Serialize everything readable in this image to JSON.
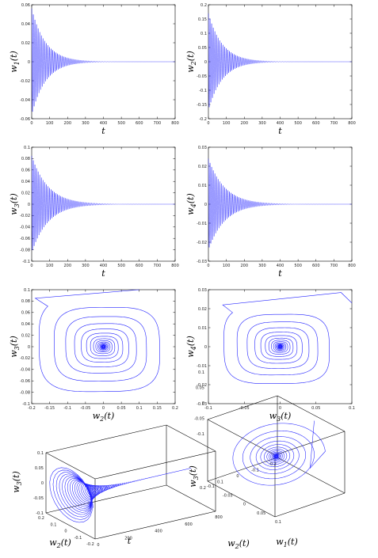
{
  "colors": {
    "line": "#2020ff",
    "axis": "#000000",
    "dense": "#0a0a90"
  },
  "chart_data": [
    {
      "id": "w1t",
      "type": "line",
      "title": "",
      "xlabel": "t",
      "ylabel": "w1(t)",
      "ylabel_sub": "1",
      "xlim": [
        0,
        800
      ],
      "ylim": [
        -0.06,
        0.06
      ],
      "xticks": [
        0,
        100,
        200,
        300,
        400,
        500,
        600,
        700,
        800
      ],
      "yticks": [
        -0.06,
        -0.04,
        -0.02,
        0,
        0.02,
        0.04,
        0.06
      ],
      "ytick_labels": [
        "-0.06",
        "-0.04",
        "-0.02",
        "0",
        "0.02",
        "0.04",
        "0.06"
      ],
      "series": [
        {
          "x_start": 0,
          "x_end": 800,
          "amplitude": 0.056,
          "decay_rate": 0.013,
          "oscillation_period": 9
        }
      ]
    },
    {
      "id": "w2t",
      "type": "line",
      "title": "",
      "xlabel": "t",
      "ylabel": "w2(t)",
      "ylabel_sub": "2",
      "xlim": [
        0,
        800
      ],
      "ylim": [
        -0.2,
        0.2
      ],
      "xticks": [
        0,
        100,
        200,
        300,
        400,
        500,
        600,
        700,
        800
      ],
      "yticks": [
        -0.2,
        -0.15,
        -0.1,
        -0.05,
        0,
        0.05,
        0.1,
        0.15,
        0.2
      ],
      "ytick_labels": [
        "-0.2",
        "-0.15",
        "-0.1",
        "-0.05",
        "0",
        "0.05",
        "0.1",
        "0.15",
        "0.2"
      ],
      "series": [
        {
          "x_start": 0,
          "x_end": 800,
          "amplitude": 0.17,
          "decay_rate": 0.013,
          "oscillation_period": 9
        }
      ]
    },
    {
      "id": "w3t",
      "type": "line",
      "title": "",
      "xlabel": "t",
      "ylabel": "w3(t)",
      "ylabel_sub": "3",
      "xlim": [
        0,
        800
      ],
      "ylim": [
        -0.1,
        0.1
      ],
      "xticks": [
        0,
        100,
        200,
        300,
        400,
        500,
        600,
        700,
        800
      ],
      "yticks": [
        -0.1,
        -0.08,
        -0.06,
        -0.04,
        -0.02,
        0,
        0.02,
        0.04,
        0.06,
        0.08,
        0.1
      ],
      "ytick_labels": [
        "-0.1",
        "-0.08",
        "-0.06",
        "-0.04",
        "-0.02",
        "0",
        "0.02",
        "0.04",
        "0.06",
        "0.08",
        "0.1"
      ],
      "series": [
        {
          "x_start": 0,
          "x_end": 800,
          "amplitude": 0.085,
          "decay_rate": 0.011,
          "oscillation_period": 9
        }
      ]
    },
    {
      "id": "w4t",
      "type": "line",
      "title": "",
      "xlabel": "t",
      "ylabel": "w4(t)",
      "ylabel_sub": "4",
      "xlim": [
        0,
        800
      ],
      "ylim": [
        -0.03,
        0.03
      ],
      "xticks": [
        0,
        100,
        200,
        300,
        400,
        500,
        600,
        700,
        800
      ],
      "yticks": [
        -0.03,
        -0.02,
        -0.01,
        0,
        0.01,
        0.02,
        0.03
      ],
      "ytick_labels": [
        "-0.03",
        "-0.02",
        "-0.01",
        "0",
        "0.01",
        "0.02",
        "0.03"
      ],
      "series": [
        {
          "x_start": 0,
          "x_end": 800,
          "amplitude": 0.024,
          "decay_rate": 0.011,
          "oscillation_period": 9
        }
      ]
    },
    {
      "id": "w2w3",
      "type": "line",
      "title": "",
      "xlabel": "w2(t)",
      "xlabel_sub": "2",
      "ylabel": "w3(t)",
      "ylabel_sub": "3",
      "xlim": [
        -0.2,
        0.2
      ],
      "ylim": [
        -0.1,
        0.1
      ],
      "xticks": [
        -0.2,
        -0.15,
        -0.1,
        -0.05,
        0,
        0.05,
        0.1,
        0.15,
        0.2
      ],
      "xtick_labels": [
        "-0.2",
        "-0.15",
        "-0.1",
        "-0.05",
        "0",
        "0.05",
        "0.1",
        "0.15",
        "0.2"
      ],
      "yticks": [
        -0.1,
        -0.08,
        -0.06,
        -0.04,
        -0.02,
        0,
        0.02,
        0.04,
        0.06,
        0.08,
        0.1
      ],
      "ytick_labels": [
        "-0.1",
        "-0.08",
        "-0.06",
        "-0.04",
        "-0.02",
        "0",
        "0.02",
        "0.04",
        "0.06",
        "0.08",
        "0.1"
      ],
      "initial_path": [
        [
          0.1,
          0.1
        ],
        [
          -0.19,
          0.085
        ]
      ],
      "spiral": {
        "start": [
          -0.19,
          0.085
        ],
        "center": [
          0,
          0
        ],
        "half_width": 0.185,
        "half_height": 0.087,
        "turns": 18
      }
    },
    {
      "id": "w3w4",
      "type": "line",
      "title": "",
      "xlabel": "w3(t)",
      "xlabel_sub": "3",
      "ylabel": "w4(t)",
      "ylabel_sub": "4",
      "xlim": [
        -0.1,
        0.1
      ],
      "ylim": [
        -0.03,
        0.03
      ],
      "xticks": [
        -0.1,
        -0.05,
        0,
        0.05,
        0.1
      ],
      "xtick_labels": [
        "-0.1",
        "-0.05",
        "0",
        "0.05",
        "0.1"
      ],
      "yticks": [
        -0.03,
        -0.02,
        -0.01,
        0,
        0.01,
        0.02,
        0.03
      ],
      "ytick_labels": [
        "-0.03",
        "-0.02",
        "-0.01",
        "0",
        "0.01",
        "0.02",
        "0.03"
      ],
      "initial_path": [
        [
          0.1,
          0.023
        ],
        [
          0.085,
          0.0285
        ],
        [
          -0.08,
          0.022
        ]
      ],
      "spiral": {
        "start": [
          -0.08,
          0.022
        ],
        "center": [
          0,
          0
        ],
        "half_width": 0.081,
        "half_height": 0.0215,
        "turns": 18
      }
    },
    {
      "id": "w2-t-w3",
      "type": "line",
      "projection": "3d",
      "title": "",
      "xlabel": "w2(t)",
      "xlabel_sub": "2",
      "ylabel": "t",
      "zlabel": "w3(t)",
      "zlabel_sub": "3",
      "xlim": [
        -0.2,
        0.2
      ],
      "ylim": [
        0,
        800
      ],
      "zlim": [
        -0.1,
        0.1
      ],
      "xticks": [
        0.2,
        0.1,
        0,
        -0.1,
        -0.2
      ],
      "xtick_labels": [
        "0.2",
        "0.1",
        "0",
        "-0.1",
        "-0.2"
      ],
      "yticks": [
        0,
        200,
        400,
        600,
        800
      ],
      "ytick_labels": [
        "0",
        "200",
        "400",
        "600",
        "800"
      ],
      "zticks": [
        -0.1,
        -0.05,
        0,
        0.05,
        0.1
      ],
      "ztick_labels": [
        "-0.1",
        "-0.05",
        "0",
        "0.05",
        "0.1"
      ]
    },
    {
      "id": "w1-w2-w3",
      "type": "line",
      "projection": "3d",
      "title": "",
      "xlabel": "w1(t)",
      "xlabel_sub": "1",
      "ylabel": "w2(t)",
      "ylabel_sub": "2",
      "zlabel": "w3(t)",
      "zlabel_sub": "3",
      "xlim": [
        -0.1,
        0.1
      ],
      "ylim": [
        -0.2,
        0.2
      ],
      "zlim": [
        -0.1,
        0.1
      ],
      "xticks": [
        -0.1,
        -0.05,
        0,
        0.05,
        0.1
      ],
      "xtick_labels": [
        "-0.1",
        "-0.05",
        "0",
        "0.05",
        "0.1"
      ],
      "yticks": [
        0.2,
        0.1,
        0,
        -0.1,
        -0.2
      ],
      "ytick_labels": [
        "0.2",
        "0.1",
        "0",
        "-0.1",
        "-0.2"
      ],
      "zticks": [
        -0.1,
        -0.05,
        0,
        0.05,
        0.1
      ],
      "ztick_labels": [
        "-0.1",
        "-0.05",
        "0",
        "0.05",
        "0.1"
      ]
    }
  ]
}
